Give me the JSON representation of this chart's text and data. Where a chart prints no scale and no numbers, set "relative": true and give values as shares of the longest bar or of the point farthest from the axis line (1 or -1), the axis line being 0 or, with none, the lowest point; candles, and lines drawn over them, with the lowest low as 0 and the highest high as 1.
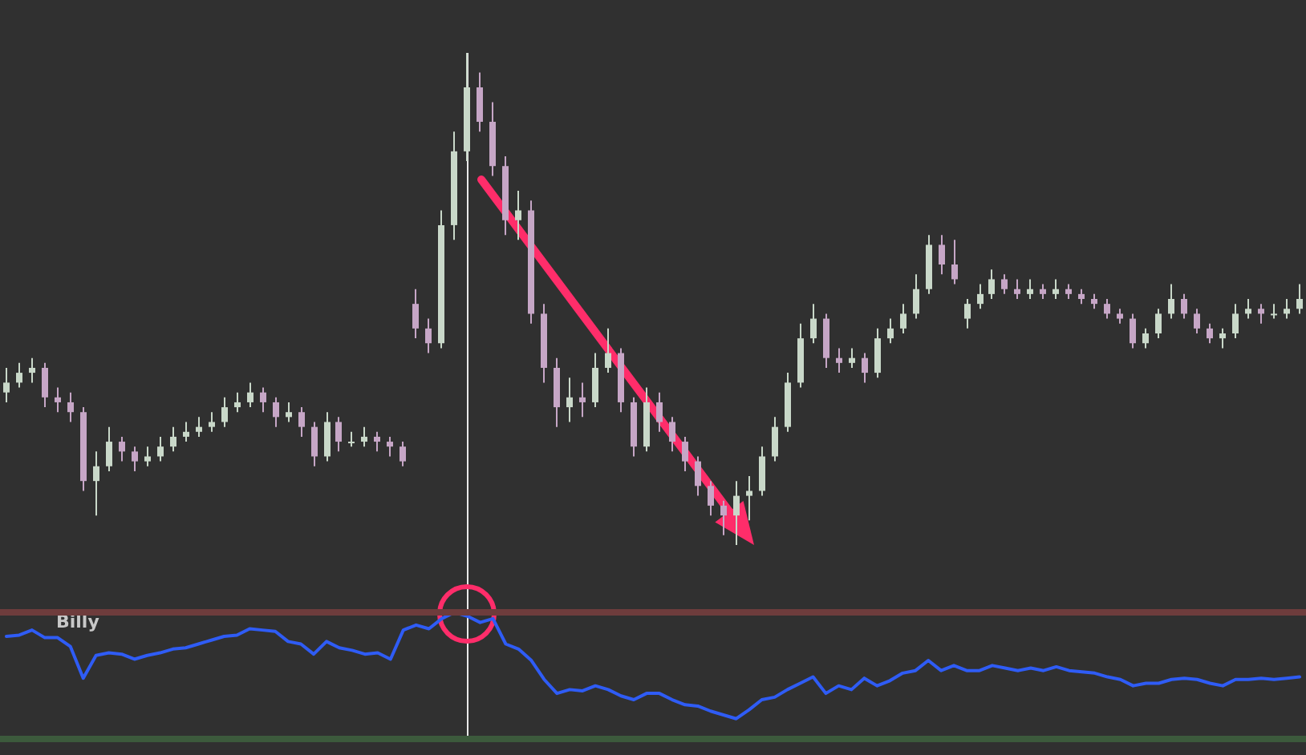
{
  "chart_data": [
    {
      "type": "candlestick",
      "relative": true,
      "categories": [
        null,
        null,
        null,
        null,
        null,
        null,
        null,
        null,
        null,
        null,
        null,
        null,
        null,
        null,
        null,
        null,
        null,
        null,
        null,
        null,
        null,
        null,
        null,
        null,
        null,
        null,
        null,
        null,
        null,
        null,
        null,
        null,
        null,
        null,
        null,
        null,
        null,
        null,
        null,
        null,
        null,
        null,
        null,
        null,
        null,
        null,
        null,
        null,
        null,
        null,
        null,
        null,
        null,
        null,
        null,
        null,
        null,
        null,
        null,
        null,
        null,
        null,
        null,
        null,
        null,
        null,
        null,
        null,
        null,
        null,
        null,
        null,
        null,
        null,
        null,
        null,
        null,
        null,
        null,
        null,
        null,
        null,
        null,
        null,
        null,
        null,
        null,
        null,
        null,
        null,
        null,
        null,
        null,
        null,
        null,
        null,
        null,
        null,
        null,
        null,
        null,
        null
      ],
      "ohlc": [
        [
          0.31,
          0.36,
          0.29,
          0.33
        ],
        [
          0.33,
          0.37,
          0.32,
          0.35
        ],
        [
          0.35,
          0.38,
          0.33,
          0.36
        ],
        [
          0.36,
          0.37,
          0.28,
          0.3
        ],
        [
          0.3,
          0.32,
          0.27,
          0.29
        ],
        [
          0.29,
          0.31,
          0.25,
          0.27
        ],
        [
          0.27,
          0.28,
          0.11,
          0.13
        ],
        [
          0.13,
          0.19,
          0.06,
          0.16
        ],
        [
          0.16,
          0.24,
          0.15,
          0.21
        ],
        [
          0.21,
          0.22,
          0.17,
          0.19
        ],
        [
          0.19,
          0.2,
          0.15,
          0.17
        ],
        [
          0.17,
          0.2,
          0.16,
          0.18
        ],
        [
          0.18,
          0.22,
          0.17,
          0.2
        ],
        [
          0.2,
          0.24,
          0.19,
          0.22
        ],
        [
          0.22,
          0.25,
          0.21,
          0.23
        ],
        [
          0.23,
          0.26,
          0.22,
          0.24
        ],
        [
          0.24,
          0.27,
          0.23,
          0.25
        ],
        [
          0.25,
          0.3,
          0.24,
          0.28
        ],
        [
          0.28,
          0.31,
          0.27,
          0.29
        ],
        [
          0.29,
          0.33,
          0.28,
          0.31
        ],
        [
          0.31,
          0.32,
          0.27,
          0.29
        ],
        [
          0.29,
          0.3,
          0.24,
          0.26
        ],
        [
          0.26,
          0.29,
          0.25,
          0.27
        ],
        [
          0.27,
          0.28,
          0.22,
          0.24
        ],
        [
          0.24,
          0.25,
          0.16,
          0.18
        ],
        [
          0.18,
          0.27,
          0.17,
          0.25
        ],
        [
          0.25,
          0.26,
          0.19,
          0.21
        ],
        [
          0.21,
          0.23,
          0.2,
          0.21
        ],
        [
          0.21,
          0.24,
          0.2,
          0.22
        ],
        [
          0.22,
          0.23,
          0.19,
          0.21
        ],
        [
          0.21,
          0.22,
          0.18,
          0.2
        ],
        [
          0.2,
          0.21,
          0.16,
          0.17
        ],
        [
          0.49,
          0.52,
          0.42,
          0.44
        ],
        [
          0.44,
          0.46,
          0.39,
          0.41
        ],
        [
          0.41,
          0.68,
          0.4,
          0.65
        ],
        [
          0.65,
          0.84,
          0.62,
          0.8
        ],
        [
          0.8,
          1.0,
          0.78,
          0.93
        ],
        [
          0.93,
          0.96,
          0.84,
          0.86
        ],
        [
          0.86,
          0.9,
          0.75,
          0.77
        ],
        [
          0.77,
          0.79,
          0.63,
          0.66
        ],
        [
          0.66,
          0.72,
          0.62,
          0.68
        ],
        [
          0.68,
          0.7,
          0.45,
          0.47
        ],
        [
          0.47,
          0.49,
          0.33,
          0.36
        ],
        [
          0.36,
          0.38,
          0.24,
          0.28
        ],
        [
          0.28,
          0.34,
          0.25,
          0.3
        ],
        [
          0.3,
          0.33,
          0.26,
          0.29
        ],
        [
          0.29,
          0.39,
          0.28,
          0.36
        ],
        [
          0.36,
          0.44,
          0.35,
          0.39
        ],
        [
          0.39,
          0.4,
          0.27,
          0.29
        ],
        [
          0.29,
          0.3,
          0.18,
          0.2
        ],
        [
          0.2,
          0.32,
          0.19,
          0.29
        ],
        [
          0.29,
          0.31,
          0.23,
          0.25
        ],
        [
          0.25,
          0.26,
          0.19,
          0.21
        ],
        [
          0.21,
          0.22,
          0.15,
          0.17
        ],
        [
          0.17,
          0.18,
          0.1,
          0.12
        ],
        [
          0.12,
          0.13,
          0.06,
          0.08
        ],
        [
          0.08,
          0.09,
          0.02,
          0.06
        ],
        [
          0.06,
          0.13,
          0.0,
          0.1
        ],
        [
          0.1,
          0.14,
          0.05,
          0.11
        ],
        [
          0.11,
          0.2,
          0.1,
          0.18
        ],
        [
          0.18,
          0.26,
          0.17,
          0.24
        ],
        [
          0.24,
          0.35,
          0.23,
          0.33
        ],
        [
          0.33,
          0.45,
          0.32,
          0.42
        ],
        [
          0.42,
          0.49,
          0.41,
          0.46
        ],
        [
          0.46,
          0.47,
          0.36,
          0.38
        ],
        [
          0.38,
          0.4,
          0.35,
          0.37
        ],
        [
          0.37,
          0.4,
          0.36,
          0.38
        ],
        [
          0.38,
          0.39,
          0.33,
          0.35
        ],
        [
          0.35,
          0.44,
          0.34,
          0.42
        ],
        [
          0.42,
          0.46,
          0.41,
          0.44
        ],
        [
          0.44,
          0.49,
          0.43,
          0.47
        ],
        [
          0.47,
          0.55,
          0.46,
          0.52
        ],
        [
          0.52,
          0.63,
          0.51,
          0.61
        ],
        [
          0.61,
          0.63,
          0.55,
          0.57
        ],
        [
          0.57,
          0.62,
          0.53,
          0.54
        ],
        [
          0.46,
          0.5,
          0.44,
          0.49
        ],
        [
          0.49,
          0.53,
          0.48,
          0.51
        ],
        [
          0.51,
          0.56,
          0.5,
          0.54
        ],
        [
          0.54,
          0.55,
          0.51,
          0.52
        ],
        [
          0.52,
          0.54,
          0.5,
          0.51
        ],
        [
          0.51,
          0.54,
          0.5,
          0.52
        ],
        [
          0.52,
          0.53,
          0.5,
          0.51
        ],
        [
          0.51,
          0.54,
          0.5,
          0.52
        ],
        [
          0.52,
          0.53,
          0.5,
          0.51
        ],
        [
          0.51,
          0.52,
          0.49,
          0.5
        ],
        [
          0.5,
          0.51,
          0.48,
          0.49
        ],
        [
          0.49,
          0.5,
          0.46,
          0.47
        ],
        [
          0.47,
          0.48,
          0.45,
          0.46
        ],
        [
          0.46,
          0.47,
          0.4,
          0.41
        ],
        [
          0.41,
          0.44,
          0.4,
          0.43
        ],
        [
          0.43,
          0.48,
          0.42,
          0.47
        ],
        [
          0.47,
          0.53,
          0.46,
          0.5
        ],
        [
          0.5,
          0.51,
          0.46,
          0.47
        ],
        [
          0.47,
          0.48,
          0.43,
          0.44
        ],
        [
          0.44,
          0.45,
          0.41,
          0.42
        ],
        [
          0.42,
          0.44,
          0.4,
          0.43
        ],
        [
          0.43,
          0.49,
          0.42,
          0.47
        ],
        [
          0.47,
          0.5,
          0.46,
          0.48
        ],
        [
          0.48,
          0.49,
          0.45,
          0.47
        ],
        [
          0.47,
          0.49,
          0.46,
          0.47
        ],
        [
          0.47,
          0.5,
          0.46,
          0.48
        ],
        [
          0.48,
          0.53,
          0.47,
          0.5
        ]
      ]
    },
    {
      "type": "line",
      "relative": true,
      "legend": "top left",
      "marker": "none",
      "line_style": "solid",
      "categories": [
        null,
        null,
        null,
        null,
        null,
        null,
        null,
        null,
        null,
        null,
        null,
        null,
        null,
        null,
        null,
        null,
        null,
        null,
        null,
        null,
        null,
        null,
        null,
        null,
        null,
        null,
        null,
        null,
        null,
        null,
        null,
        null,
        null,
        null,
        null,
        null,
        null,
        null,
        null,
        null,
        null,
        null,
        null,
        null,
        null,
        null,
        null,
        null,
        null,
        null,
        null,
        null,
        null,
        null,
        null,
        null,
        null,
        null,
        null,
        null,
        null,
        null,
        null,
        null,
        null,
        null,
        null,
        null,
        null,
        null,
        null,
        null,
        null,
        null,
        null,
        null,
        null,
        null,
        null,
        null,
        null,
        null,
        null,
        null,
        null,
        null,
        null,
        null,
        null,
        null,
        null,
        null,
        null,
        null,
        null,
        null,
        null,
        null,
        null,
        null,
        null,
        null
      ],
      "series": [
        {
          "name": "Billy",
          "color": "#2f5cf5",
          "values": [
            0.81,
            0.82,
            0.86,
            0.8,
            0.8,
            0.73,
            0.48,
            0.66,
            0.68,
            0.67,
            0.63,
            0.66,
            0.68,
            0.71,
            0.72,
            0.75,
            0.78,
            0.81,
            0.82,
            0.87,
            0.86,
            0.85,
            0.77,
            0.75,
            0.67,
            0.77,
            0.72,
            0.7,
            0.67,
            0.68,
            0.63,
            0.86,
            0.9,
            0.87,
            0.95,
            1.0,
            0.97,
            0.92,
            0.95,
            0.75,
            0.71,
            0.62,
            0.47,
            0.36,
            0.39,
            0.38,
            0.42,
            0.39,
            0.34,
            0.31,
            0.36,
            0.36,
            0.31,
            0.27,
            0.26,
            0.22,
            0.19,
            0.16,
            0.23,
            0.31,
            0.33,
            0.39,
            0.44,
            0.49,
            0.36,
            0.42,
            0.39,
            0.48,
            0.42,
            0.46,
            0.52,
            0.54,
            0.62,
            0.54,
            0.58,
            0.54,
            0.54,
            0.58,
            0.56,
            0.54,
            0.56,
            0.54,
            0.57,
            0.54,
            0.53,
            0.52,
            0.49,
            0.47,
            0.42,
            0.44,
            0.44,
            0.47,
            0.48,
            0.47,
            0.44,
            0.42,
            0.47,
            0.47,
            0.48,
            0.47,
            0.48,
            0.49
          ]
        }
      ],
      "ref_lines": [
        {
          "axis": "y",
          "value": 1.0,
          "color": "#6e3c3c"
        }
      ]
    }
  ]
}
